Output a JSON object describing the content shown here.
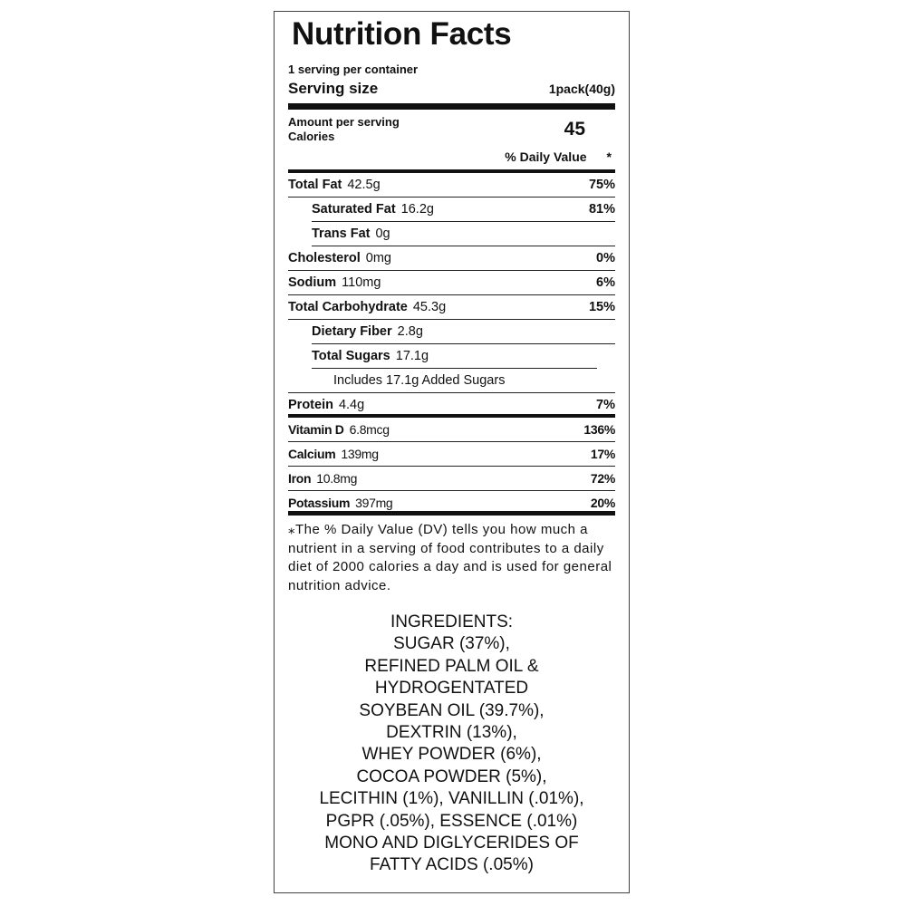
{
  "title": "Nutrition Facts",
  "servings": "1 serving per container",
  "serving_size": {
    "label": "Serving size",
    "value": "1pack(40g)"
  },
  "amount_per_serving": "Amount per serving",
  "calories": {
    "label": "Calories",
    "value": 45
  },
  "daily_value_header": {
    "label": "% Daily Value",
    "mark": "*"
  },
  "nutrients": [
    {
      "name": "Total Fat",
      "amount": "42.5g",
      "dv": "75%",
      "sub": [
        {
          "name": "Saturated Fat",
          "amount": "16.2g",
          "dv": "81%"
        },
        {
          "name": "Trans Fat",
          "amount": "0g"
        }
      ]
    },
    {
      "name": "Cholesterol",
      "amount": "0mg",
      "dv": "0%"
    },
    {
      "name": "Sodium",
      "amount": "110mg",
      "dv": "6%"
    },
    {
      "name": "Total Carbohydrate",
      "amount": "45.3g",
      "dv": "15%",
      "sub": [
        {
          "name": "Dietary Fiber",
          "amount": "2.8g"
        },
        {
          "name": "Total Sugars",
          "amount": "17.1g",
          "includes": "Includes 17.1g Added Sugars"
        }
      ]
    },
    {
      "name": "Protein",
      "amount": "4.4g",
      "dv": "7%"
    }
  ],
  "vitamins": [
    {
      "name": "Vitamin D",
      "amount": "6.8mcg",
      "dv": "136%"
    },
    {
      "name": "Calcium",
      "amount": "139mg",
      "dv": "17%"
    },
    {
      "name": "Iron",
      "amount": "10.8mg",
      "dv": "72%"
    },
    {
      "name": "Potassium",
      "amount": "397mg",
      "dv": "20%"
    }
  ],
  "footnote": "⁎The % Daily Value (DV) tells you how much a nutrient in a serving of food contributes to a daily diet of 2000 calories a day and is used for general nutrition advice.",
  "ingredients": {
    "heading": "INGREDIENTS:",
    "lines": [
      "SUGAR (37%),",
      "REFINED PALM OIL &",
      "HYDROGENTATED",
      "SOYBEAN OIL (39.7%),",
      "DEXTRIN (13%),",
      "WHEY POWDER (6%),",
      "COCOA POWDER (5%),",
      "LECITHIN (1%), VANILLIN (.01%),",
      "PGPR (.05%), ESSENCE (.01%)",
      "MONO AND DIGLYCERIDES OF",
      "FATTY ACIDS (.05%)"
    ]
  }
}
